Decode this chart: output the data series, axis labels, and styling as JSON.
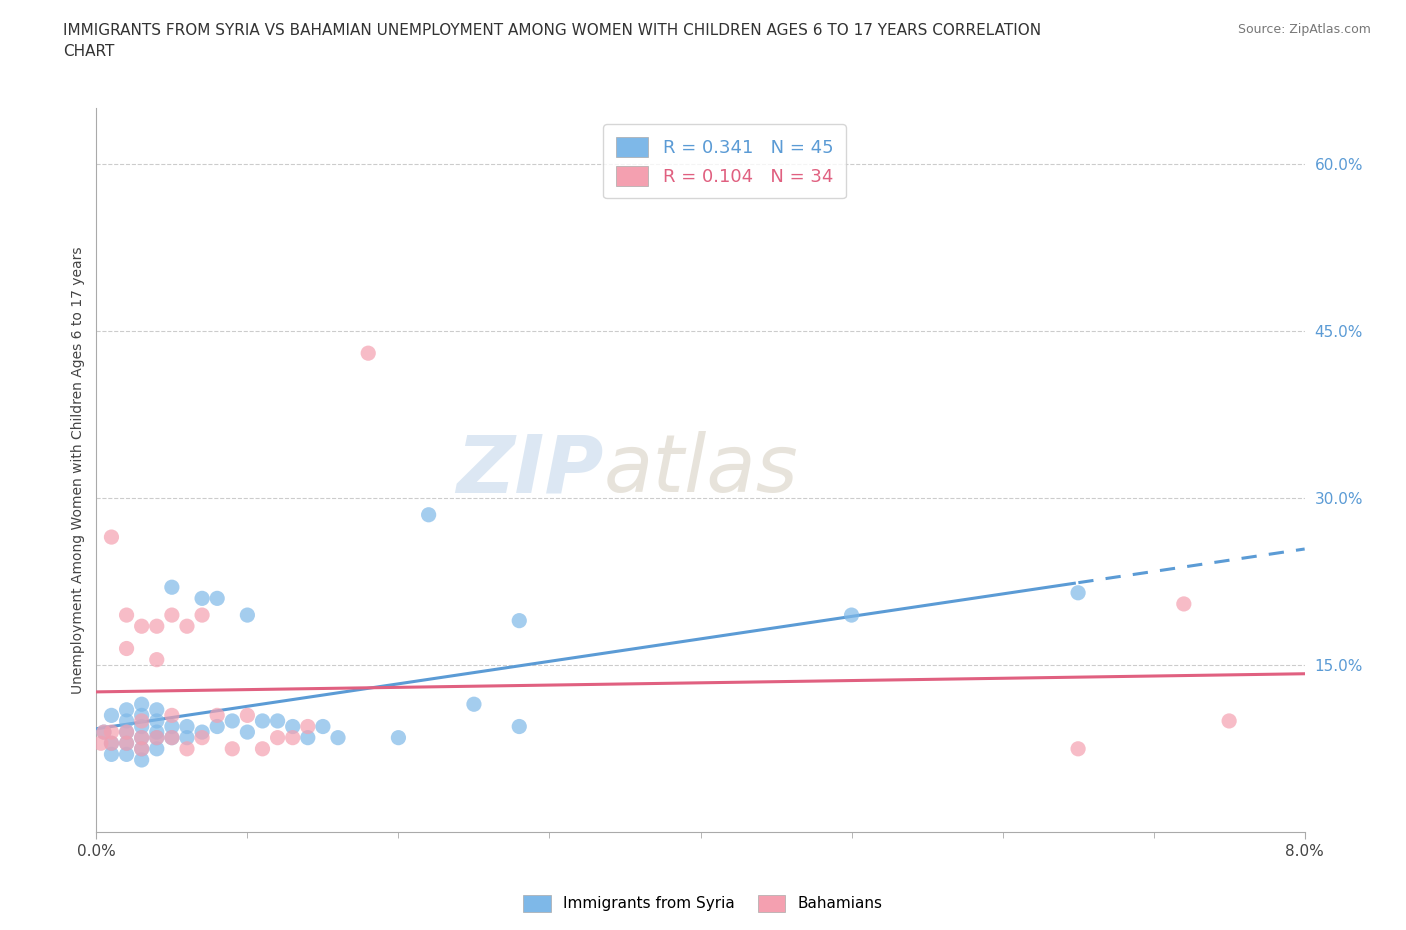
{
  "title": "IMMIGRANTS FROM SYRIA VS BAHAMIAN UNEMPLOYMENT AMONG WOMEN WITH CHILDREN AGES 6 TO 17 YEARS CORRELATION\nCHART",
  "source": "Source: ZipAtlas.com",
  "ylabel": "Unemployment Among Women with Children Ages 6 to 17 years",
  "xlim": [
    0.0,
    0.08
  ],
  "ylim": [
    0.0,
    0.65
  ],
  "ytick_positions": [
    0.15,
    0.3,
    0.45,
    0.6
  ],
  "ytick_labels": [
    "15.0%",
    "30.0%",
    "45.0%",
    "60.0%"
  ],
  "blue_color": "#7eb8e8",
  "pink_color": "#f4a0b0",
  "blue_line_color": "#5b9bd5",
  "pink_line_color": "#e06080",
  "legend_blue_R": "0.341",
  "legend_blue_N": "45",
  "legend_pink_R": "0.104",
  "legend_pink_N": "34",
  "watermark_zip": "ZIP",
  "watermark_atlas": "atlas",
  "blue_scatter_x": [
    0.0005,
    0.001,
    0.001,
    0.001,
    0.002,
    0.002,
    0.002,
    0.002,
    0.002,
    0.003,
    0.003,
    0.003,
    0.003,
    0.003,
    0.003,
    0.004,
    0.004,
    0.004,
    0.004,
    0.004,
    0.005,
    0.005,
    0.005,
    0.006,
    0.006,
    0.007,
    0.007,
    0.008,
    0.008,
    0.009,
    0.01,
    0.01,
    0.011,
    0.012,
    0.013,
    0.014,
    0.015,
    0.016,
    0.02,
    0.022,
    0.025,
    0.028,
    0.028,
    0.05,
    0.065
  ],
  "blue_scatter_y": [
    0.09,
    0.07,
    0.08,
    0.105,
    0.07,
    0.08,
    0.09,
    0.1,
    0.11,
    0.065,
    0.075,
    0.085,
    0.095,
    0.105,
    0.115,
    0.075,
    0.085,
    0.09,
    0.1,
    0.11,
    0.085,
    0.095,
    0.22,
    0.085,
    0.095,
    0.09,
    0.21,
    0.095,
    0.21,
    0.1,
    0.09,
    0.195,
    0.1,
    0.1,
    0.095,
    0.085,
    0.095,
    0.085,
    0.085,
    0.285,
    0.115,
    0.095,
    0.19,
    0.195,
    0.215
  ],
  "pink_scatter_x": [
    0.0003,
    0.0005,
    0.001,
    0.001,
    0.001,
    0.002,
    0.002,
    0.002,
    0.002,
    0.003,
    0.003,
    0.003,
    0.003,
    0.004,
    0.004,
    0.004,
    0.005,
    0.005,
    0.005,
    0.006,
    0.006,
    0.007,
    0.007,
    0.008,
    0.009,
    0.01,
    0.011,
    0.012,
    0.013,
    0.014,
    0.018,
    0.065,
    0.072,
    0.075
  ],
  "pink_scatter_y": [
    0.08,
    0.09,
    0.08,
    0.09,
    0.265,
    0.08,
    0.09,
    0.165,
    0.195,
    0.075,
    0.085,
    0.1,
    0.185,
    0.085,
    0.155,
    0.185,
    0.085,
    0.105,
    0.195,
    0.075,
    0.185,
    0.085,
    0.195,
    0.105,
    0.075,
    0.105,
    0.075,
    0.085,
    0.085,
    0.095,
    0.43,
    0.075,
    0.205,
    0.1
  ]
}
